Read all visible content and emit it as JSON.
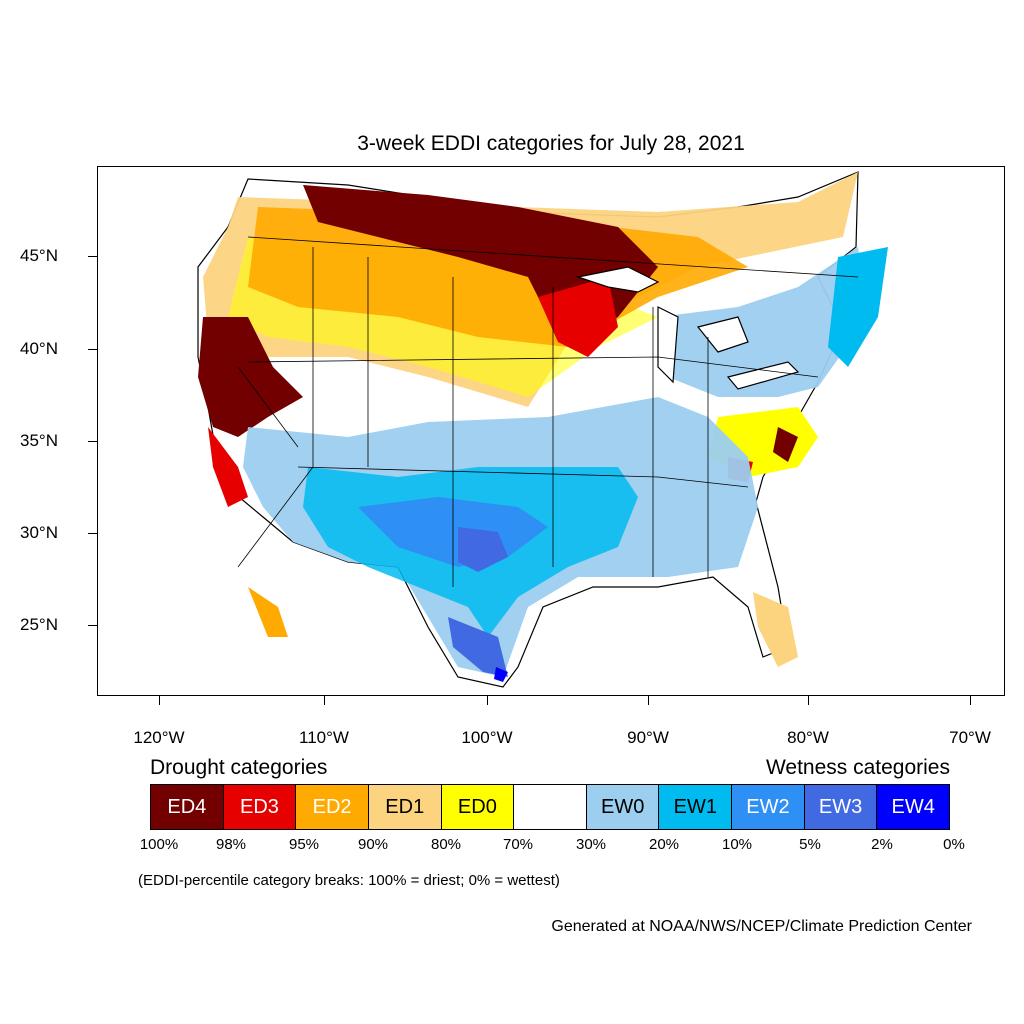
{
  "map": {
    "title": "3-week EDDI categories for July 28, 2021",
    "lat_labels": [
      "45°N",
      "40°N",
      "35°N",
      "30°N",
      "25°N"
    ],
    "lon_labels": [
      "120°W",
      "110°W",
      "100°W",
      "90°W",
      "80°W",
      "70°W"
    ]
  },
  "legend": {
    "drought_heading": "Drought categories",
    "wetness_heading": "Wetness categories",
    "categories": [
      {
        "label": "ED4",
        "color": "#730000",
        "text_color": "#ffffff"
      },
      {
        "label": "ED3",
        "color": "#e60000",
        "text_color": "#ffffff"
      },
      {
        "label": "ED2",
        "color": "#ffaa00",
        "text_color": "#ffffff"
      },
      {
        "label": "ED1",
        "color": "#fcd37f",
        "text_color": "#000000"
      },
      {
        "label": "ED0",
        "color": "#ffff00",
        "text_color": "#000000"
      },
      {
        "label": "",
        "color": "#ffffff",
        "text_color": "#000000"
      },
      {
        "label": "EW0",
        "color": "#9ccef0",
        "text_color": "#000000"
      },
      {
        "label": "EW1",
        "color": "#00bbf0",
        "text_color": "#000000"
      },
      {
        "label": "EW2",
        "color": "#2e8ff5",
        "text_color": "#ffffff"
      },
      {
        "label": "EW3",
        "color": "#4169e1",
        "text_color": "#ffffff"
      },
      {
        "label": "EW4",
        "color": "#0000ff",
        "text_color": "#ffffff"
      }
    ],
    "breaks": [
      "100%",
      "98%",
      "95%",
      "90%",
      "80%",
      "70%",
      "30%",
      "20%",
      "10%",
      "5%",
      "2%",
      "0%"
    ],
    "note": "(EDDI-percentile category breaks: 100% = driest; 0% = wettest)"
  },
  "credit": "Generated at NOAA/NWS/NCEP/Climate Prediction Center"
}
